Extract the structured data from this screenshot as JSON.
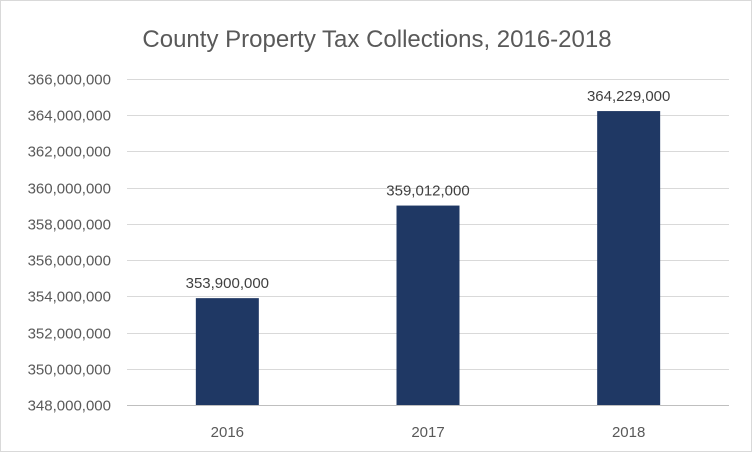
{
  "chart_data": {
    "type": "bar",
    "title": "County Property Tax Collections, 2016-2018",
    "xlabel": "",
    "ylabel": "",
    "categories": [
      "2016",
      "2017",
      "2018"
    ],
    "values": [
      353900000,
      359012000,
      364229000
    ],
    "data_labels": [
      "353,900,000",
      "359,012,000",
      "364,229,000"
    ],
    "ylim": [
      348000000,
      366000000
    ],
    "yticks": [
      348000000,
      350000000,
      352000000,
      354000000,
      356000000,
      358000000,
      360000000,
      362000000,
      364000000,
      366000000
    ],
    "ytick_labels": [
      "348,000,000",
      "350,000,000",
      "352,000,000",
      "354,000,000",
      "356,000,000",
      "358,000,000",
      "360,000,000",
      "362,000,000",
      "364,000,000",
      "366,000,000"
    ],
    "grid": true,
    "legend": "none",
    "bar_color": "#1f3864"
  }
}
